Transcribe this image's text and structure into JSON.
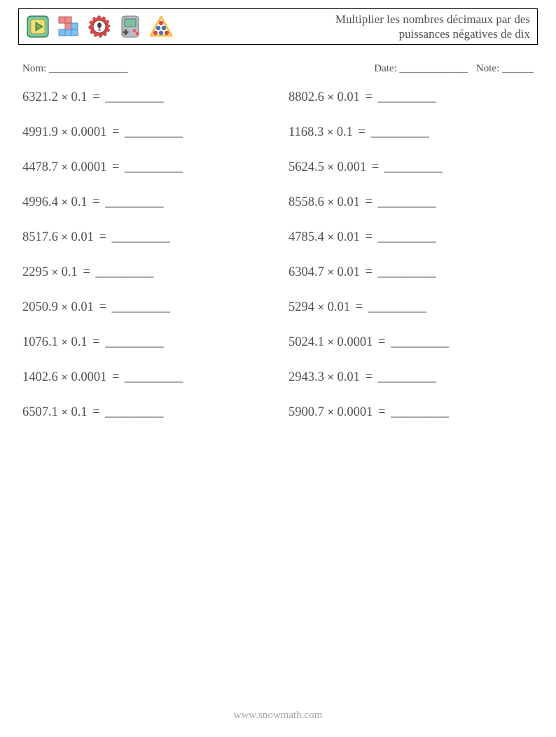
{
  "title_line1": "Multiplier les nombres décimaux par des",
  "title_line2": "puissances négatives de dix",
  "meta": {
    "name_label": "Nom: _______________",
    "date_label": "Date: _____________",
    "note_label": "Note: ______"
  },
  "multiply_symbol": "×",
  "equals": " = ",
  "blank": "_________",
  "problems_left": [
    {
      "a": "6321.2",
      "b": "0.1"
    },
    {
      "a": "4991.9",
      "b": "0.0001"
    },
    {
      "a": "4478.7",
      "b": "0.0001"
    },
    {
      "a": "4996.4",
      "b": "0.1"
    },
    {
      "a": "8517.6",
      "b": "0.01"
    },
    {
      "a": "2295",
      "b": "0.1"
    },
    {
      "a": "2050.9",
      "b": "0.01"
    },
    {
      "a": "1076.1",
      "b": "0.1"
    },
    {
      "a": "1402.6",
      "b": "0.0001"
    },
    {
      "a": "6507.1",
      "b": "0.1"
    }
  ],
  "problems_right": [
    {
      "a": "8802.6",
      "b": "0.01"
    },
    {
      "a": "1168.3",
      "b": "0.1"
    },
    {
      "a": "5624.5",
      "b": "0.001"
    },
    {
      "a": "8558.6",
      "b": "0.01"
    },
    {
      "a": "4785.4",
      "b": "0.01"
    },
    {
      "a": "6304.7",
      "b": "0.01"
    },
    {
      "a": "5294",
      "b": "0.01"
    },
    {
      "a": "5024.1",
      "b": "0.0001"
    },
    {
      "a": "2943.3",
      "b": "0.01"
    },
    {
      "a": "5900.7",
      "b": "0.0001"
    }
  ],
  "footer": "www.snowmath.com",
  "icons": {
    "play_bg": "#78c8a0",
    "play_inner": "#f7e07a",
    "tetris_c1": "#f28d8d",
    "tetris_c2": "#7fbff2",
    "chip_outer": "#d94848",
    "chip_inner": "#ffffff",
    "chip_spade": "#444",
    "handheld_body": "#b9bec4",
    "handheld_screen": "#7fbf9f",
    "handheld_btn": "#e85a5a",
    "billiard_tri": "#f2c24b",
    "ball1": "#d94848",
    "ball2": "#4a6fb5",
    "ball3": "#4a6fb5",
    "ball4": "#d94848",
    "ball5": "#4a6fb5",
    "ball6": "#d94848"
  }
}
